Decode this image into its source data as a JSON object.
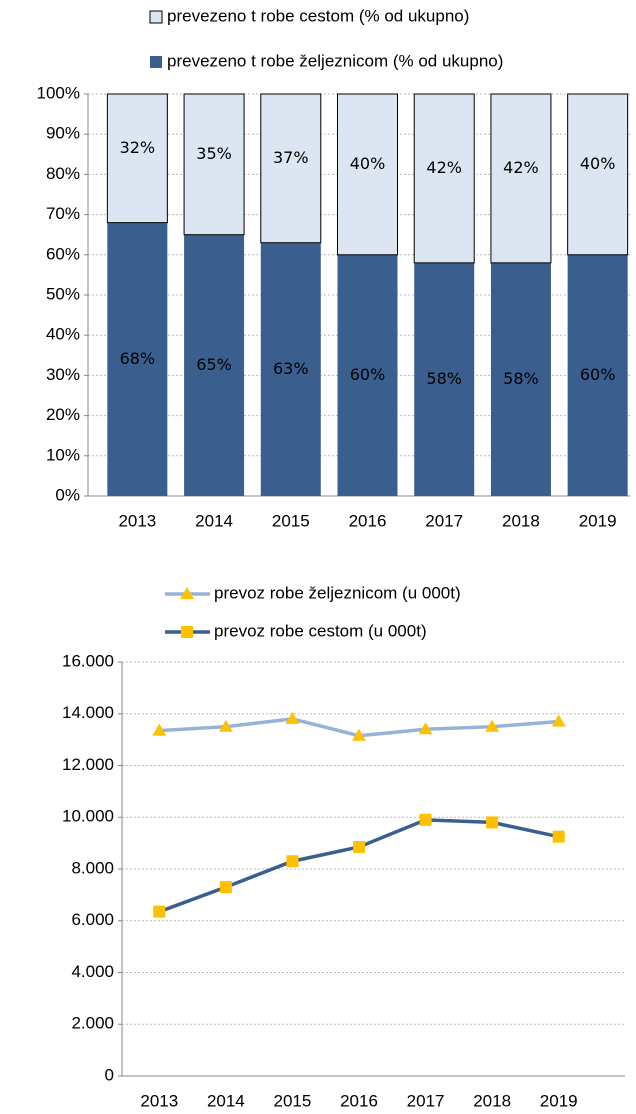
{
  "chart_data": [
    {
      "type": "bar",
      "stacked": true,
      "grid": true,
      "categories": [
        "2013",
        "2014",
        "2015",
        "2016",
        "2017",
        "2018",
        "2019"
      ],
      "series": [
        {
          "name": "prevezeno t robe željeznicom (% od ukupno)",
          "color": "#3a5f8f",
          "values": [
            68,
            65,
            63,
            60,
            58,
            58,
            60
          ],
          "value_labels": [
            "68%",
            "65%",
            "63%",
            "60%",
            "58%",
            "58%",
            "60%"
          ]
        },
        {
          "name": "prevezeno t robe cestom (% od ukupno)",
          "color": "#dce6f2",
          "values": [
            32,
            35,
            37,
            40,
            42,
            42,
            40
          ],
          "value_labels": [
            "32%",
            "35%",
            "37%",
            "40%",
            "42%",
            "42%",
            "40%"
          ]
        }
      ],
      "ylim": [
        0,
        100
      ],
      "yticks": [
        {
          "value": 0,
          "label": "0%"
        },
        {
          "value": 10,
          "label": "10%"
        },
        {
          "value": 20,
          "label": "20%"
        },
        {
          "value": 30,
          "label": "30%"
        },
        {
          "value": 40,
          "label": "40%"
        },
        {
          "value": 50,
          "label": "50%"
        },
        {
          "value": 60,
          "label": "60%"
        },
        {
          "value": 70,
          "label": "70%"
        },
        {
          "value": 80,
          "label": "80%"
        },
        {
          "value": 90,
          "label": "90%"
        },
        {
          "value": 100,
          "label": "100%"
        }
      ]
    },
    {
      "type": "line",
      "grid": true,
      "categories": [
        "2013",
        "2014",
        "2015",
        "2016",
        "2017",
        "2018",
        "2019"
      ],
      "series": [
        {
          "name": "prevoz robe željeznicom (u 000t)",
          "color": "#95b3d7",
          "marker": "triangle",
          "marker_color": "#ffc000",
          "values": [
            13350,
            13500,
            13800,
            13150,
            13400,
            13500,
            13700
          ]
        },
        {
          "name": "prevoz robe cestom (u 000t)",
          "color": "#3a5f8f",
          "marker": "square",
          "marker_color": "#ffc000",
          "values": [
            6350,
            7300,
            8300,
            8850,
            9900,
            9800,
            9250
          ]
        }
      ],
      "ylim": [
        0,
        16000
      ],
      "yticks": [
        0,
        {
          "value": 2000,
          "label": "2.000"
        },
        {
          "value": 4000,
          "label": "4.000"
        },
        {
          "value": 6000,
          "label": "6.000"
        },
        {
          "value": 8000,
          "label": "8.000"
        },
        {
          "value": 10000,
          "label": "10.000"
        },
        {
          "value": 12000,
          "label": "12.000"
        },
        {
          "value": 14000,
          "label": "14.000"
        },
        {
          "value": 16000,
          "label": "16.000"
        }
      ]
    }
  ]
}
